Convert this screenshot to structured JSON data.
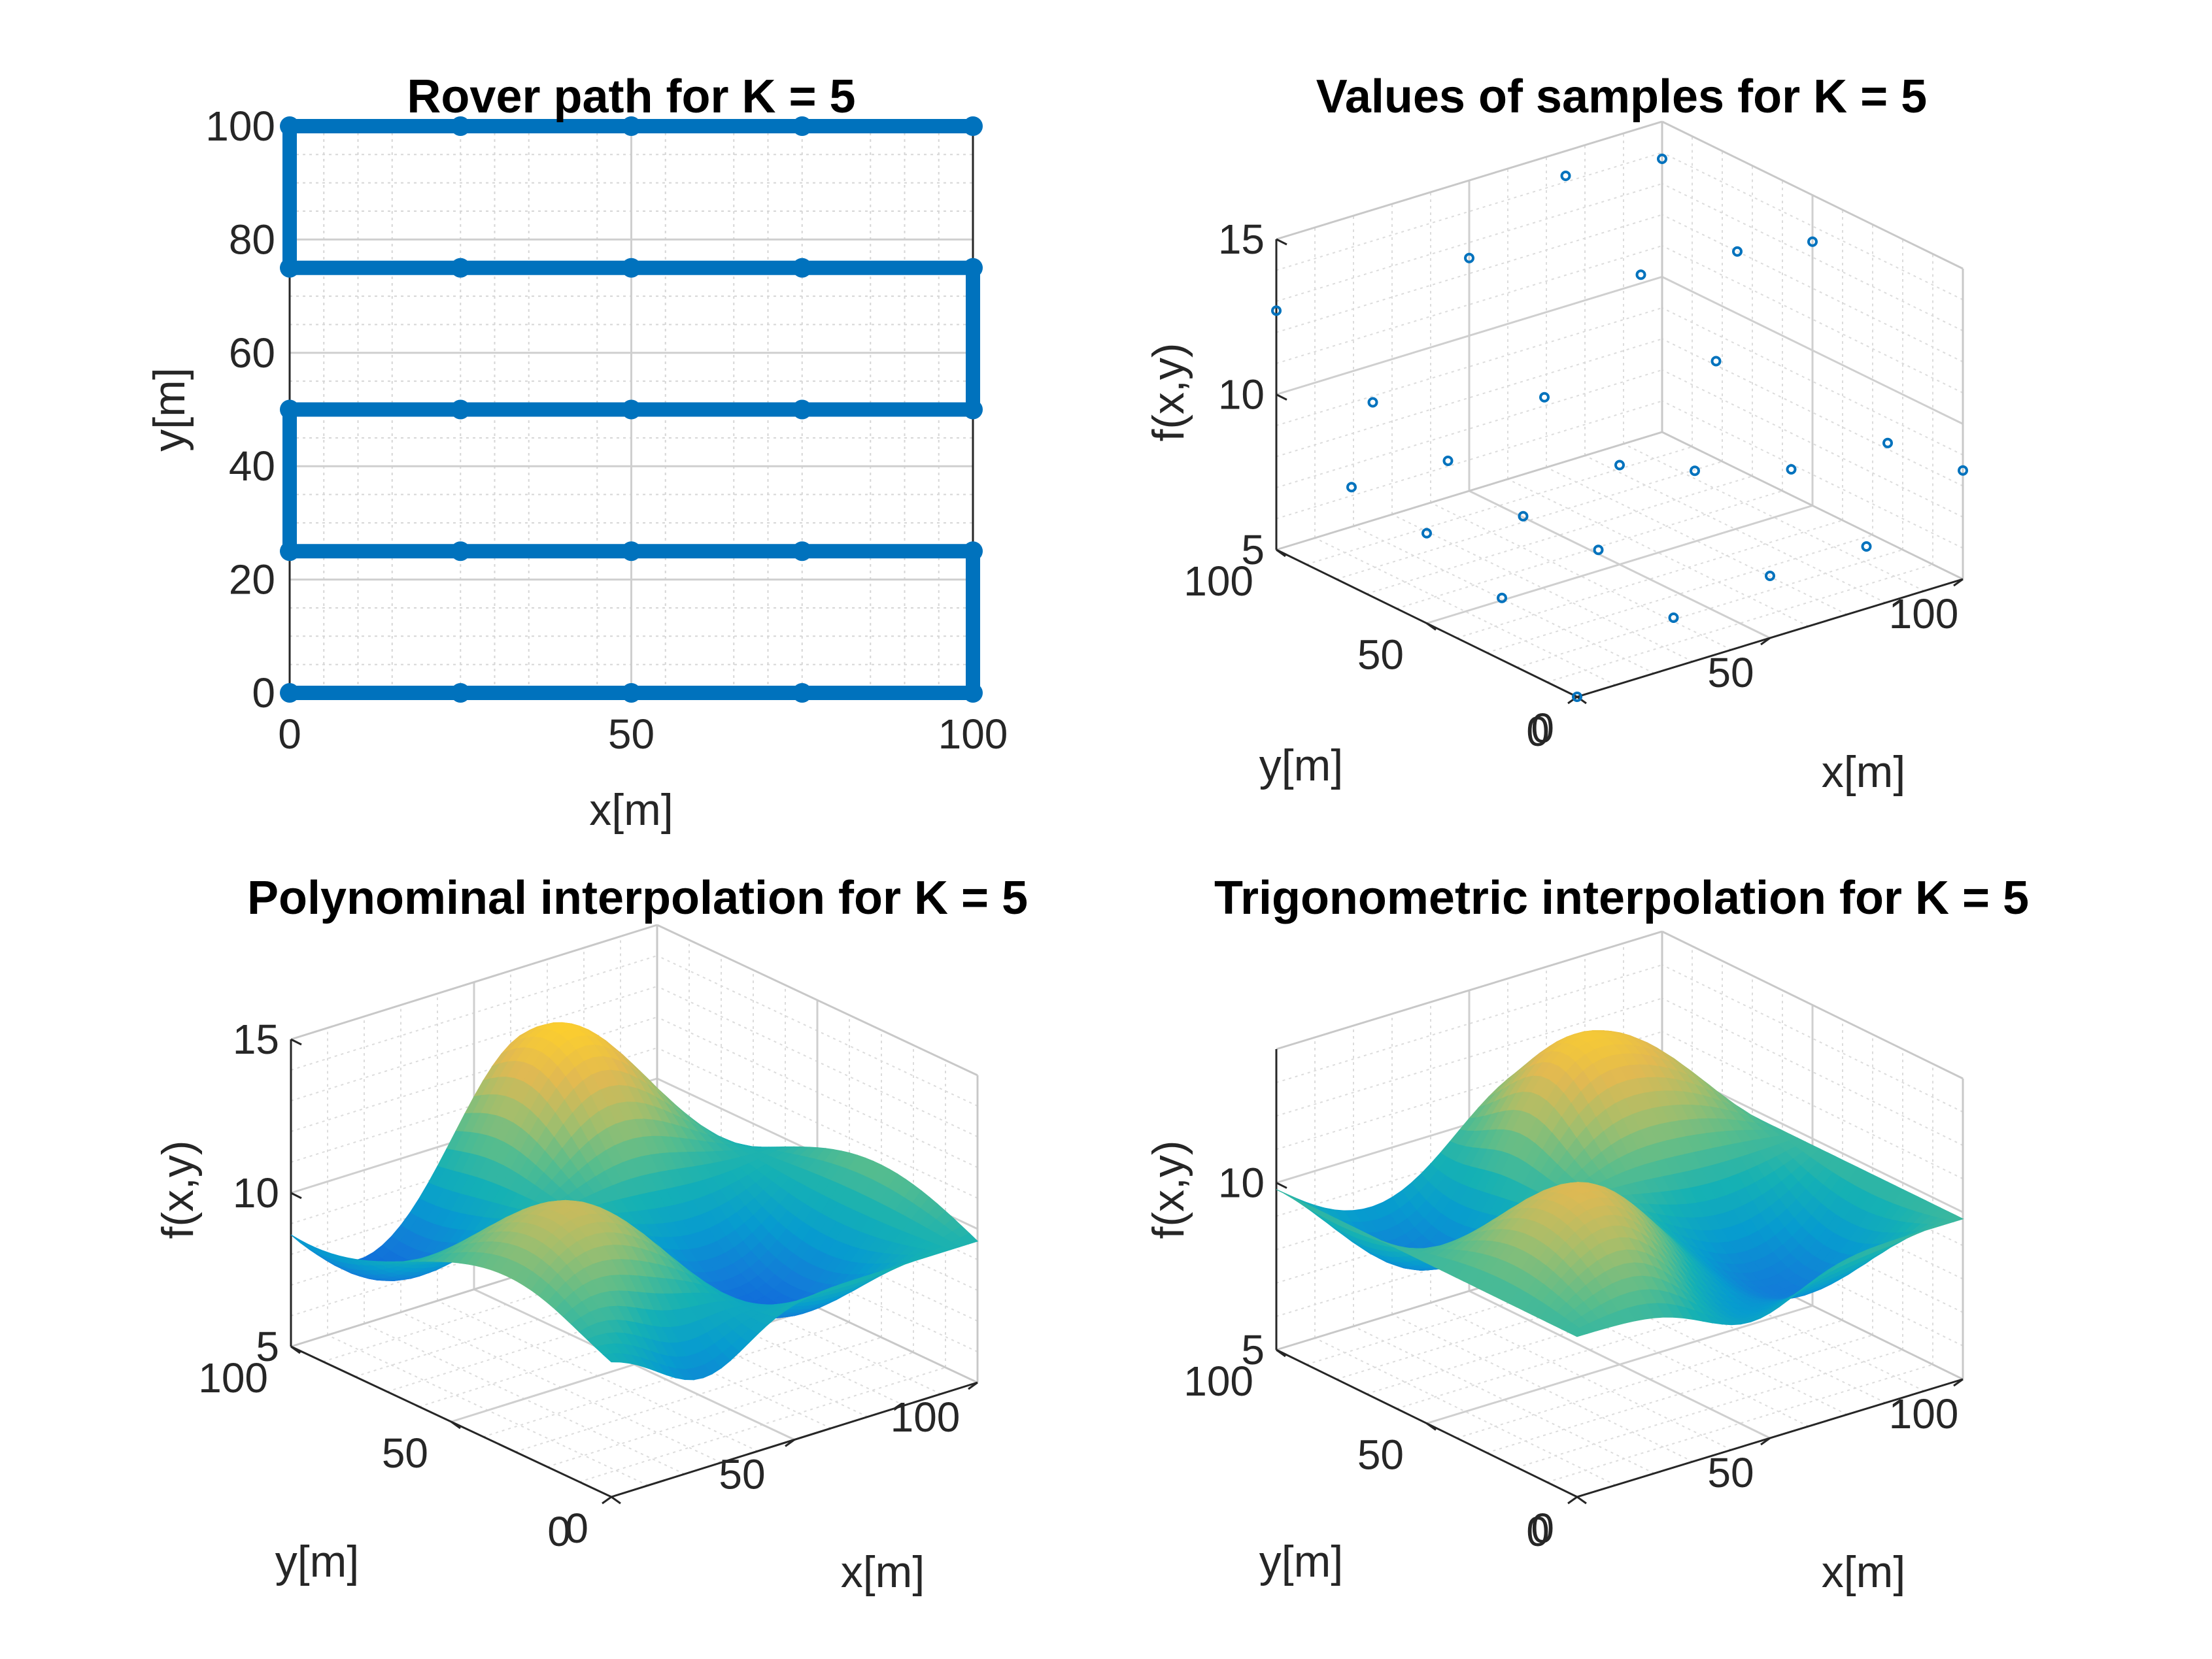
{
  "chart_data": [
    {
      "type": "line",
      "title": "Rover path for K = 5",
      "xlabel": "x[m]",
      "ylabel": "y[m]",
      "xlim": [
        0,
        100
      ],
      "ylim": [
        0,
        100
      ],
      "xticks": [
        "0",
        "50",
        "100"
      ],
      "yticks": [
        "0",
        "20",
        "40",
        "60",
        "80",
        "100"
      ],
      "grid": "on (major + minor dotted)",
      "color": "#0072BD",
      "series": [
        {
          "x": [
            0,
            25,
            50,
            75,
            100,
            100,
            75,
            50,
            25,
            0,
            0,
            25,
            50,
            75,
            100,
            100,
            75,
            50,
            25,
            0,
            0,
            25,
            50,
            75,
            100
          ],
          "y": [
            0,
            0,
            0,
            0,
            0,
            25,
            25,
            25,
            25,
            25,
            50,
            50,
            50,
            50,
            50,
            75,
            75,
            75,
            75,
            75,
            100,
            100,
            100,
            100,
            100
          ]
        }
      ]
    },
    {
      "type": "scatter",
      "title": "Values of samples for K = 5",
      "xlabel": "x[m]",
      "ylabel": "y[m]",
      "zlabel": "f(x,y)",
      "xlim": [
        0,
        100
      ],
      "ylim": [
        0,
        100
      ],
      "zlim": [
        5,
        15
      ],
      "xticks": [
        "0",
        "50",
        "100"
      ],
      "yticks": [
        "0",
        "50",
        "100"
      ],
      "zticks": [
        "5",
        "10",
        "15"
      ],
      "view": "3-D isometric box",
      "color": "#0072BD",
      "points": [
        {
          "x": 0,
          "y": 0,
          "z": 5.0
        },
        {
          "x": 25,
          "y": 0,
          "z": 6.6
        },
        {
          "x": 50,
          "y": 0,
          "z": 7.0
        },
        {
          "x": 75,
          "y": 0,
          "z": 7.0
        },
        {
          "x": 100,
          "y": 0,
          "z": 8.5
        },
        {
          "x": 0,
          "y": 25,
          "z": 7.0
        },
        {
          "x": 25,
          "y": 25,
          "z": 7.6
        },
        {
          "x": 50,
          "y": 25,
          "z": 9.2
        },
        {
          "x": 75,
          "y": 25,
          "z": 8.3
        },
        {
          "x": 100,
          "y": 25,
          "z": 8.2
        },
        {
          "x": 0,
          "y": 50,
          "z": 7.9
        },
        {
          "x": 25,
          "y": 50,
          "z": 7.5
        },
        {
          "x": 50,
          "y": 50,
          "z": 8.2
        },
        {
          "x": 75,
          "y": 50,
          "z": 10.6
        },
        {
          "x": 100,
          "y": 50,
          "z": 13.5
        },
        {
          "x": 0,
          "y": 75,
          "z": 8.2
        },
        {
          "x": 25,
          "y": 75,
          "z": 8.1
        },
        {
          "x": 50,
          "y": 75,
          "z": 9.2
        },
        {
          "x": 75,
          "y": 75,
          "z": 12.2
        },
        {
          "x": 100,
          "y": 75,
          "z": 12.0
        },
        {
          "x": 0,
          "y": 100,
          "z": 12.7
        },
        {
          "x": 25,
          "y": 100,
          "z": 8.8
        },
        {
          "x": 50,
          "y": 100,
          "z": 12.5
        },
        {
          "x": 75,
          "y": 100,
          "z": 14.2
        },
        {
          "x": 100,
          "y": 100,
          "z": 13.8
        }
      ]
    },
    {
      "type": "surface",
      "title": "Polynominal interpolation for K = 5",
      "xlabel": "x[m]",
      "ylabel": "y[m]",
      "zlabel": "f(x,y)",
      "xlim": [
        0,
        100
      ],
      "ylim": [
        0,
        100
      ],
      "zlim": [
        5,
        15
      ],
      "xticks": [
        "0",
        "50",
        "100"
      ],
      "yticks": [
        "0",
        "50",
        "100"
      ],
      "zticks": [
        "5",
        "10",
        "15"
      ],
      "colormap": "parula",
      "view": "3-D isometric box"
    },
    {
      "type": "surface",
      "title": "Trigonometric interpolation for K = 5",
      "xlabel": "x[m]",
      "ylabel": "y[m]",
      "zlabel": "f(x,y)",
      "xlim": [
        0,
        100
      ],
      "ylim": [
        0,
        100
      ],
      "zlim": [
        5,
        14
      ],
      "xticks": [
        "0",
        "50",
        "100"
      ],
      "yticks": [
        "0",
        "50",
        "100"
      ],
      "zticks": [
        "5",
        "10"
      ],
      "colormap": "parula",
      "view": "3-D isometric box"
    }
  ]
}
